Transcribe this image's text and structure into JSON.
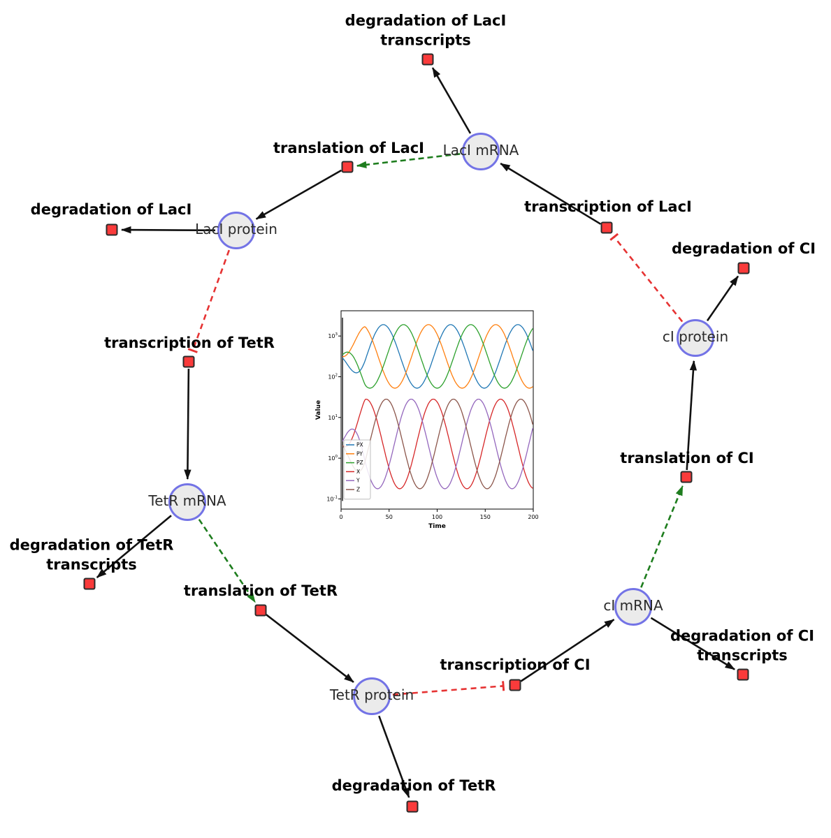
{
  "diagram": {
    "title": "repressilator gene regulatory network",
    "species": [
      {
        "id": "laci_mrna",
        "label": "LacI mRNA"
      },
      {
        "id": "laci_protein",
        "label": "LacI protein"
      },
      {
        "id": "ci_protein",
        "label": "cI protein"
      },
      {
        "id": "tetr_mrna",
        "label": "TetR mRNA"
      },
      {
        "id": "ci_mrna",
        "label": "cI mRNA"
      },
      {
        "id": "tetr_protein",
        "label": "TetR protein"
      }
    ],
    "reactions": [
      {
        "id": "deg_laci_tx",
        "label": "degradation of LacI transcripts"
      },
      {
        "id": "transl_laci",
        "label": "translation of LacI"
      },
      {
        "id": "txn_laci",
        "label": "transcription of LacI"
      },
      {
        "id": "deg_laci",
        "label": "degradation of LacI"
      },
      {
        "id": "deg_ci",
        "label": "degradation of CI"
      },
      {
        "id": "txn_tetr",
        "label": "transcription of TetR"
      },
      {
        "id": "transl_ci",
        "label": "translation of CI"
      },
      {
        "id": "deg_tetr_tx",
        "label": "degradation of TetR transcripts"
      },
      {
        "id": "transl_tetr",
        "label": "translation of TetR"
      },
      {
        "id": "txn_ci",
        "label": "transcription of CI"
      },
      {
        "id": "deg_ci_tx",
        "label": "degradation of CI transcripts"
      },
      {
        "id": "deg_tetr",
        "label": "degradation of TetR"
      }
    ],
    "edges": [
      {
        "from": "laci_mrna",
        "to": "deg_laci_tx",
        "type": "consumption"
      },
      {
        "from": "transl_laci",
        "to": "laci_protein",
        "type": "production"
      },
      {
        "from": "laci_mrna",
        "to": "transl_laci",
        "type": "activation"
      },
      {
        "from": "txn_laci",
        "to": "laci_mrna",
        "type": "production"
      },
      {
        "from": "ci_protein",
        "to": "txn_laci",
        "type": "inhibition"
      },
      {
        "from": "laci_protein",
        "to": "deg_laci",
        "type": "consumption"
      },
      {
        "from": "ci_protein",
        "to": "deg_ci",
        "type": "consumption"
      },
      {
        "from": "laci_protein",
        "to": "txn_tetr",
        "type": "inhibition"
      },
      {
        "from": "txn_tetr",
        "to": "tetr_mrna",
        "type": "production"
      },
      {
        "from": "tetr_mrna",
        "to": "deg_tetr_tx",
        "type": "consumption"
      },
      {
        "from": "tetr_mrna",
        "to": "transl_tetr",
        "type": "activation"
      },
      {
        "from": "transl_tetr",
        "to": "tetr_protein",
        "type": "production"
      },
      {
        "from": "tetr_protein",
        "to": "deg_tetr",
        "type": "consumption"
      },
      {
        "from": "tetr_protein",
        "to": "txn_ci",
        "type": "inhibition"
      },
      {
        "from": "txn_ci",
        "to": "ci_mrna",
        "type": "production"
      },
      {
        "from": "ci_mrna",
        "to": "deg_ci_tx",
        "type": "consumption"
      },
      {
        "from": "ci_mrna",
        "to": "transl_ci",
        "type": "activation"
      },
      {
        "from": "transl_ci",
        "to": "ci_protein",
        "type": "production"
      }
    ],
    "colors": {
      "species_fill": "#ebebeb",
      "species_stroke": "#7373e6",
      "reaction_fill": "#fa3b3b",
      "reaction_stroke": "#2b2b2b",
      "edge_black": "#111111",
      "edge_activation": "#1e7d1e",
      "edge_inhibition": "#e63333"
    }
  },
  "chart_data": {
    "type": "line",
    "title": "",
    "xlabel": "Time",
    "ylabel": "Value",
    "x_range": [
      0,
      200
    ],
    "x_ticks": [
      0,
      50,
      100,
      150,
      200
    ],
    "y_scale": "log",
    "y_ticks_log10": [
      -1,
      0,
      1,
      2,
      3
    ],
    "grid": false,
    "legend_position": "lower left",
    "waveform_note": "each series oscillates sinusoidally in log10 space: log10(v)=mid+amp*min(1,t/25)*cos(2*pi*(t-peak)/period); initial transient spike at t=0",
    "series": [
      {
        "name": "PX",
        "color": "#1f77b4",
        "log10_mid": 2.5,
        "log10_amp": 0.78,
        "period": 70,
        "peak_time": 44
      },
      {
        "name": "PY",
        "color": "#ff7f0e",
        "log10_mid": 2.5,
        "log10_amp": 0.78,
        "period": 70,
        "peak_time": 21
      },
      {
        "name": "PZ",
        "color": "#2ca02c",
        "log10_mid": 2.5,
        "log10_amp": 0.78,
        "period": 70,
        "peak_time": 65
      },
      {
        "name": "X",
        "color": "#d62728",
        "log10_mid": 0.35,
        "log10_amp": 1.1,
        "period": 70,
        "peak_time": 26
      },
      {
        "name": "Y",
        "color": "#9467bd",
        "log10_mid": 0.35,
        "log10_amp": 1.1,
        "period": 70,
        "peak_time": 73
      },
      {
        "name": "Z",
        "color": "#8c564b",
        "log10_mid": 0.35,
        "log10_amp": 1.1,
        "period": 70,
        "peak_time": 47
      }
    ]
  }
}
